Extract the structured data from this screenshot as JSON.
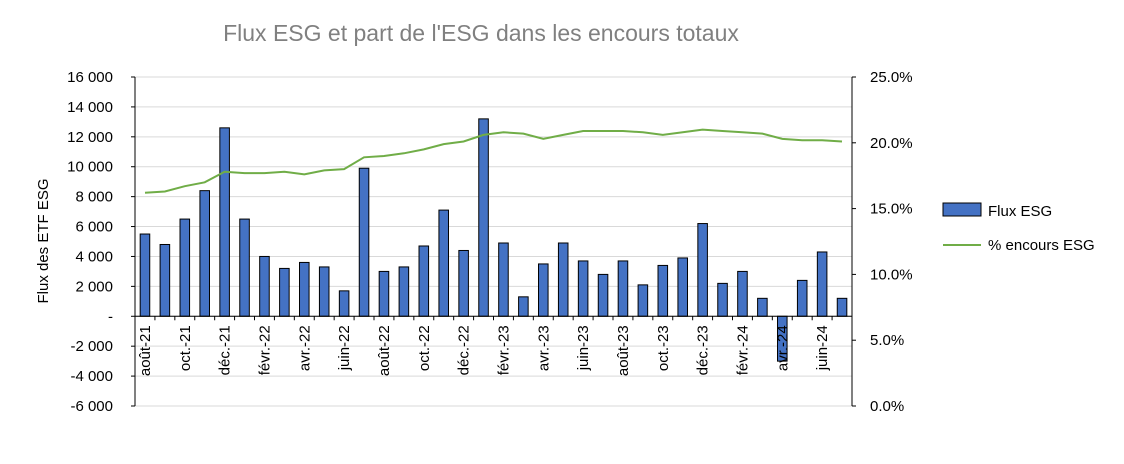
{
  "chart_data": {
    "type": "bar",
    "title": "Flux ESG et part de l'ESG dans les encours totaux",
    "xlabel": "",
    "ylabel": "Flux des ETF ESG",
    "y2label": "",
    "ylim": [
      -6000,
      16000
    ],
    "y2lim": [
      0,
      25
    ],
    "ytick_labels": [
      "16 000",
      "14 000",
      "12 000",
      "10 000",
      "8 000",
      "6 000",
      "4 000",
      "2 000",
      "-",
      "-2 000",
      "-4 000",
      "-6 000"
    ],
    "y2tick_labels": [
      "25.0%",
      "20.0%",
      "15.0%",
      "10.0%",
      "5.0%",
      "0.0%"
    ],
    "categories": [
      "août-21",
      "sept.-21",
      "oct.-21",
      "nov.-21",
      "déc.-21",
      "janv.-22",
      "févr.-22",
      "mars-22",
      "avr.-22",
      "mai-22",
      "juin-22",
      "juil.-22",
      "août-22",
      "sept.-22",
      "oct.-22",
      "nov.-22",
      "déc.-22",
      "janv.-23",
      "févr.-23",
      "mars-23",
      "avr.-23",
      "mai-23",
      "juin-23",
      "juil.-23",
      "août-23",
      "sept.-23",
      "oct.-23",
      "nov.-23",
      "déc.-23",
      "janv.-24",
      "févr.-24",
      "mars-24",
      "avr.-24",
      "mai-24",
      "juin-24",
      "juil.-24"
    ],
    "shown_labels": [
      "août-21",
      "oct.-21",
      "déc.-21",
      "févr.-22",
      "avr.-22",
      "juin-22",
      "août-22",
      "oct.-22",
      "déc.-22",
      "févr.-23",
      "avr.-23",
      "juin-23",
      "août-23",
      "oct.-23",
      "déc.-23",
      "févr.-24",
      "avr.-24",
      "juin-24"
    ],
    "series": [
      {
        "name": "Flux ESG",
        "type": "bar",
        "axis": "left",
        "color": "#4472C4",
        "values": [
          5500,
          4800,
          6500,
          8400,
          12600,
          6500,
          4000,
          3200,
          3600,
          3300,
          1700,
          9900,
          3000,
          3300,
          4700,
          7100,
          4400,
          13200,
          4900,
          1300,
          3500,
          4900,
          3700,
          2800,
          3700,
          2100,
          3400,
          3900,
          6200,
          2200,
          3000,
          1200,
          -3000,
          2400,
          4300,
          1200
        ]
      },
      {
        "name": "% encours ESG",
        "type": "line",
        "axis": "right",
        "color": "#70AD47",
        "values": [
          16.2,
          16.3,
          16.7,
          17.0,
          17.8,
          17.7,
          17.7,
          17.8,
          17.6,
          17.9,
          18.0,
          18.9,
          19.0,
          19.2,
          19.5,
          19.9,
          20.1,
          20.6,
          20.8,
          20.7,
          20.3,
          20.6,
          20.9,
          20.9,
          20.9,
          20.8,
          20.6,
          20.8,
          21.0,
          20.9,
          20.8,
          20.7,
          20.3,
          20.2,
          20.2,
          20.1
        ]
      }
    ],
    "legend": "right",
    "grid": "horizontal"
  }
}
